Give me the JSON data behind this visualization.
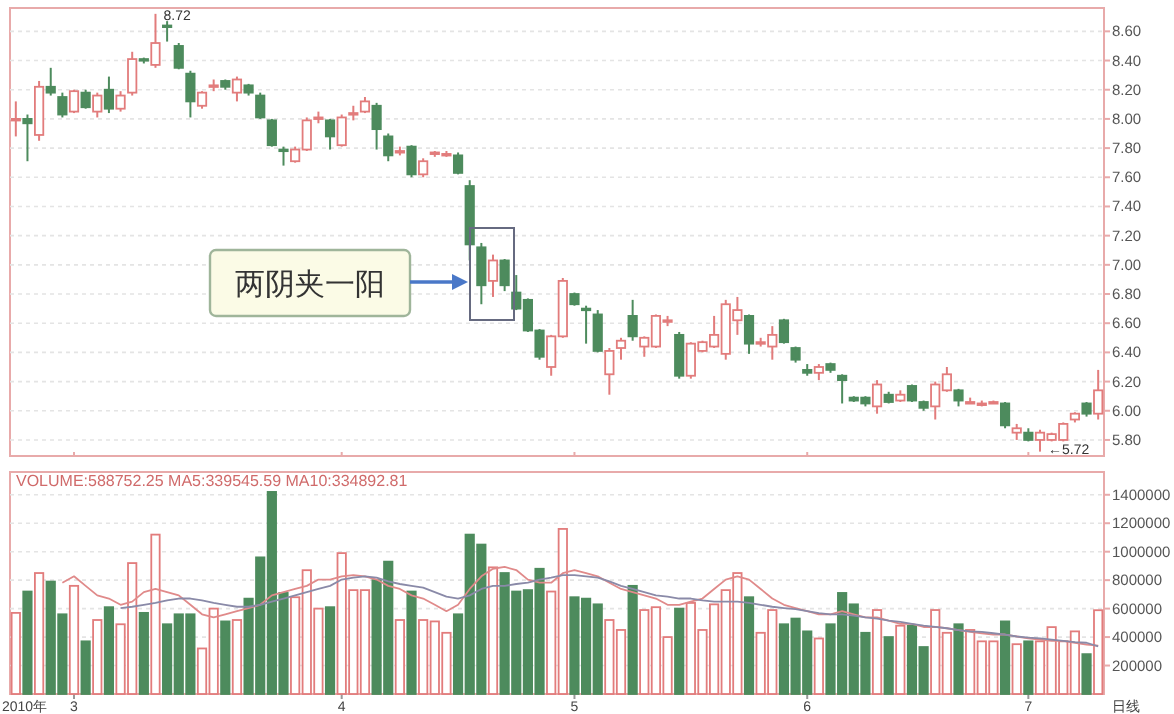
{
  "chart_data": [
    {
      "type": "candlestick",
      "tick_labels": "y",
      "grid": "y",
      "categories": [
        null,
        null,
        null,
        null,
        null,
        "3",
        null,
        null,
        null,
        null,
        null,
        null,
        null,
        null,
        null,
        null,
        null,
        null,
        null,
        null,
        null,
        null,
        null,
        null,
        null,
        null,
        null,
        null,
        "4",
        null,
        null,
        null,
        null,
        null,
        null,
        null,
        null,
        null,
        null,
        null,
        null,
        null,
        null,
        null,
        null,
        null,
        null,
        null,
        "5",
        null,
        null,
        null,
        null,
        null,
        null,
        null,
        null,
        null,
        null,
        null,
        null,
        null,
        null,
        null,
        null,
        null,
        null,
        null,
        "6",
        null,
        null,
        null,
        null,
        null,
        null,
        null,
        null,
        null,
        null,
        null,
        null,
        null,
        null,
        null,
        null,
        null,
        null,
        "7",
        null,
        null,
        null,
        null,
        null,
        null
      ],
      "ohlc": [
        [
          8.0,
          8.12,
          7.88,
          8.0
        ],
        [
          8.0,
          8.03,
          7.71,
          7.97
        ],
        [
          7.89,
          8.26,
          7.85,
          8.22
        ],
        [
          8.22,
          8.35,
          8.16,
          8.18
        ],
        [
          8.15,
          8.18,
          8.01,
          8.03
        ],
        [
          8.05,
          8.2,
          8.04,
          8.19
        ],
        [
          8.18,
          8.2,
          8.07,
          8.08
        ],
        [
          8.05,
          8.18,
          8.01,
          8.16
        ],
        [
          8.2,
          8.29,
          8.04,
          8.07
        ],
        [
          8.07,
          8.19,
          8.05,
          8.16
        ],
        [
          8.18,
          8.46,
          8.16,
          8.41
        ],
        [
          8.41,
          8.42,
          8.38,
          8.4
        ],
        [
          8.37,
          8.72,
          8.35,
          8.52
        ],
        [
          8.64,
          8.67,
          8.53,
          8.63
        ],
        [
          8.5,
          8.52,
          8.34,
          8.35
        ],
        [
          8.31,
          8.33,
          8.01,
          8.12
        ],
        [
          8.09,
          8.19,
          8.07,
          8.18
        ],
        [
          8.23,
          8.27,
          8.19,
          8.23
        ],
        [
          8.26,
          8.27,
          8.2,
          8.22
        ],
        [
          8.18,
          8.29,
          8.12,
          8.27
        ],
        [
          8.23,
          8.24,
          8.16,
          8.18
        ],
        [
          8.16,
          8.18,
          8.0,
          8.01
        ],
        [
          7.99,
          8.0,
          7.81,
          7.82
        ],
        [
          7.79,
          7.81,
          7.68,
          7.78
        ],
        [
          7.71,
          7.81,
          7.7,
          7.79
        ],
        [
          7.79,
          8.01,
          7.78,
          7.99
        ],
        [
          8.01,
          8.05,
          7.97,
          8.01
        ],
        [
          7.99,
          8.0,
          7.79,
          7.88
        ],
        [
          7.82,
          8.03,
          7.81,
          8.01
        ],
        [
          8.04,
          8.09,
          7.99,
          8.04
        ],
        [
          8.05,
          8.15,
          8.04,
          8.12
        ],
        [
          8.09,
          8.11,
          7.79,
          7.93
        ],
        [
          7.88,
          7.9,
          7.71,
          7.75
        ],
        [
          7.78,
          7.81,
          7.75,
          7.78
        ],
        [
          7.81,
          7.82,
          7.6,
          7.62
        ],
        [
          7.62,
          7.73,
          7.6,
          7.71
        ],
        [
          7.77,
          7.78,
          7.74,
          7.77
        ],
        [
          7.76,
          7.78,
          7.74,
          7.76
        ],
        [
          7.75,
          7.77,
          7.62,
          7.63
        ],
        [
          7.54,
          7.58,
          7.03,
          7.14
        ],
        [
          7.12,
          7.15,
          6.73,
          6.86
        ],
        [
          6.89,
          7.07,
          6.78,
          7.03
        ],
        [
          7.03,
          7.04,
          6.82,
          6.86
        ],
        [
          6.81,
          6.93,
          6.69,
          6.7
        ],
        [
          6.76,
          6.77,
          6.54,
          6.55
        ],
        [
          6.55,
          6.56,
          6.35,
          6.37
        ],
        [
          6.3,
          6.52,
          6.24,
          6.51
        ],
        [
          6.51,
          6.91,
          6.5,
          6.89
        ],
        [
          6.8,
          6.81,
          6.72,
          6.73
        ],
        [
          6.7,
          6.72,
          6.46,
          6.69
        ],
        [
          6.66,
          6.69,
          6.4,
          6.41
        ],
        [
          6.25,
          6.43,
          6.11,
          6.41
        ],
        [
          6.43,
          6.5,
          6.35,
          6.48
        ],
        [
          6.65,
          6.76,
          6.48,
          6.51
        ],
        [
          6.44,
          6.51,
          6.37,
          6.5
        ],
        [
          6.44,
          6.66,
          6.43,
          6.65
        ],
        [
          6.62,
          6.65,
          6.58,
          6.62
        ],
        [
          6.52,
          6.54,
          6.22,
          6.24
        ],
        [
          6.24,
          6.47,
          6.22,
          6.46
        ],
        [
          6.41,
          6.48,
          6.4,
          6.47
        ],
        [
          6.44,
          6.65,
          6.43,
          6.52
        ],
        [
          6.39,
          6.76,
          6.35,
          6.73
        ],
        [
          6.62,
          6.78,
          6.52,
          6.69
        ],
        [
          6.65,
          6.66,
          6.39,
          6.46
        ],
        [
          6.47,
          6.5,
          6.44,
          6.47
        ],
        [
          6.44,
          6.58,
          6.35,
          6.52
        ],
        [
          6.62,
          6.63,
          6.46,
          6.47
        ],
        [
          6.43,
          6.44,
          6.33,
          6.35
        ],
        [
          6.28,
          6.32,
          6.24,
          6.26
        ],
        [
          6.26,
          6.32,
          6.21,
          6.3
        ],
        [
          6.32,
          6.33,
          6.26,
          6.28
        ],
        [
          6.24,
          6.25,
          6.05,
          6.21
        ],
        [
          6.09,
          6.1,
          6.06,
          6.07
        ],
        [
          6.09,
          6.1,
          6.03,
          6.05
        ],
        [
          6.03,
          6.21,
          5.98,
          6.18
        ],
        [
          6.11,
          6.13,
          6.05,
          6.06
        ],
        [
          6.07,
          6.14,
          6.06,
          6.11
        ],
        [
          6.17,
          6.18,
          6.06,
          6.07
        ],
        [
          6.06,
          6.07,
          6.0,
          6.02
        ],
        [
          6.03,
          6.2,
          5.94,
          6.18
        ],
        [
          6.14,
          6.3,
          6.13,
          6.25
        ],
        [
          6.14,
          6.15,
          6.03,
          6.07
        ],
        [
          6.06,
          6.09,
          6.05,
          6.06
        ],
        [
          6.05,
          6.07,
          6.03,
          6.05
        ],
        [
          6.06,
          6.07,
          6.05,
          6.06
        ],
        [
          6.05,
          6.06,
          5.88,
          5.9
        ],
        [
          5.85,
          5.91,
          5.8,
          5.88
        ],
        [
          5.85,
          5.88,
          5.79,
          5.8
        ],
        [
          5.8,
          5.87,
          5.72,
          5.85
        ],
        [
          5.8,
          5.85,
          5.79,
          5.84
        ],
        [
          5.8,
          5.92,
          5.79,
          5.91
        ],
        [
          5.94,
          5.99,
          5.92,
          5.98
        ],
        [
          6.05,
          6.06,
          5.96,
          5.98
        ],
        [
          5.98,
          6.28,
          5.94,
          6.14
        ]
      ],
      "colors": [
        "#e27c7c",
        "#4d8b5d",
        "#e27c7c",
        "#4d8b5d",
        "#4d8b5d",
        "#e27c7c",
        "#4d8b5d",
        "#e27c7c",
        "#4d8b5d",
        "#e27c7c",
        "#e27c7c",
        "#4d8b5d",
        "#e27c7c",
        "#4d8b5d",
        "#4d8b5d",
        "#4d8b5d",
        "#e27c7c",
        "#e27c7c",
        "#4d8b5d",
        "#e27c7c",
        "#4d8b5d",
        "#4d8b5d",
        "#4d8b5d",
        "#4d8b5d",
        "#e27c7c",
        "#e27c7c",
        "#e27c7c",
        "#4d8b5d",
        "#e27c7c",
        "#e27c7c",
        "#e27c7c",
        "#4d8b5d",
        "#4d8b5d",
        "#e27c7c",
        "#4d8b5d",
        "#e27c7c",
        "#e27c7c",
        "#e27c7c",
        "#4d8b5d",
        "#4d8b5d",
        "#4d8b5d",
        "#e27c7c",
        "#4d8b5d",
        "#4d8b5d",
        "#4d8b5d",
        "#4d8b5d",
        "#e27c7c",
        "#e27c7c",
        "#4d8b5d",
        "#4d8b5d",
        "#4d8b5d",
        "#e27c7c",
        "#e27c7c",
        "#4d8b5d",
        "#e27c7c",
        "#e27c7c",
        "#e27c7c",
        "#4d8b5d",
        "#e27c7c",
        "#e27c7c",
        "#e27c7c",
        "#e27c7c",
        "#e27c7c",
        "#4d8b5d",
        "#e27c7c",
        "#e27c7c",
        "#4d8b5d",
        "#4d8b5d",
        "#4d8b5d",
        "#e27c7c",
        "#4d8b5d",
        "#4d8b5d",
        "#4d8b5d",
        "#4d8b5d",
        "#e27c7c",
        "#4d8b5d",
        "#e27c7c",
        "#4d8b5d",
        "#4d8b5d",
        "#e27c7c",
        "#e27c7c",
        "#4d8b5d",
        "#e27c7c",
        "#e27c7c",
        "#e27c7c",
        "#4d8b5d",
        "#e27c7c",
        "#4d8b5d",
        "#e27c7c",
        "#e27c7c",
        "#e27c7c",
        "#e27c7c",
        "#4d8b5d",
        "#e27c7c"
      ],
      "ylim": [
        5.69,
        8.76
      ],
      "yticks": [
        {
          "value": 5.8,
          "label": "5.80"
        },
        {
          "value": 6.0,
          "label": "6.00"
        },
        {
          "value": 6.2,
          "label": "6.20"
        },
        {
          "value": 6.4,
          "label": "6.40"
        },
        {
          "value": 6.6,
          "label": "6.60"
        },
        {
          "value": 6.8,
          "label": "6.80"
        },
        {
          "value": 7.0,
          "label": "7.00"
        },
        {
          "value": 7.2,
          "label": "7.20"
        },
        {
          "value": 7.4,
          "label": "7.40"
        },
        {
          "value": 7.6,
          "label": "7.60"
        },
        {
          "value": 7.8,
          "label": "7.80"
        },
        {
          "value": 8.0,
          "label": "8.00"
        },
        {
          "value": 8.2,
          "label": "8.20"
        },
        {
          "value": 8.4,
          "label": "8.40"
        },
        {
          "value": 8.6,
          "label": "8.60"
        }
      ],
      "annotations": [
        "8.72",
        "←5.72",
        "两阴夹一阳"
      ]
    },
    {
      "type": "bar",
      "grid": "y",
      "title": "VOLUME:588752.25  MA5:339545.59  MA10:334892.81",
      "categories": [
        null,
        null,
        null,
        null,
        null,
        "3",
        null,
        null,
        null,
        null,
        null,
        null,
        null,
        null,
        null,
        null,
        null,
        null,
        null,
        null,
        null,
        null,
        null,
        null,
        null,
        null,
        null,
        null,
        "4",
        null,
        null,
        null,
        null,
        null,
        null,
        null,
        null,
        null,
        null,
        null,
        null,
        null,
        null,
        null,
        null,
        null,
        null,
        null,
        "5",
        null,
        null,
        null,
        null,
        null,
        null,
        null,
        null,
        null,
        null,
        null,
        null,
        null,
        null,
        null,
        null,
        null,
        null,
        null,
        "6",
        null,
        null,
        null,
        null,
        null,
        null,
        null,
        null,
        null,
        null,
        null,
        null,
        null,
        null,
        null,
        null,
        null,
        null,
        "7",
        null,
        null,
        null,
        null,
        null,
        null
      ],
      "series": [
        {
          "type": "bar",
          "values": [
            570000,
            720000,
            850000,
            790000,
            560000,
            760000,
            370000,
            520000,
            610000,
            490000,
            920000,
            570000,
            1120000,
            490000,
            560000,
            560000,
            320000,
            600000,
            510000,
            520000,
            670000,
            960000,
            1420000,
            710000,
            680000,
            870000,
            600000,
            610000,
            990000,
            730000,
            730000,
            800000,
            930000,
            520000,
            720000,
            520000,
            510000,
            430000,
            560000,
            1120000,
            1050000,
            890000,
            850000,
            720000,
            730000,
            880000,
            720000,
            1160000,
            680000,
            670000,
            630000,
            520000,
            450000,
            760000,
            590000,
            610000,
            400000,
            600000,
            640000,
            450000,
            630000,
            730000,
            850000,
            680000,
            430000,
            590000,
            490000,
            530000,
            440000,
            390000,
            490000,
            710000,
            630000,
            430000,
            590000,
            400000,
            480000,
            480000,
            330000,
            590000,
            430000,
            490000,
            450000,
            370000,
            370000,
            510000,
            350000,
            370000,
            370000,
            470000,
            370000,
            440000,
            280000,
            588752.25
          ],
          "colors": [
            "#e27c7c",
            "#4d8b5d",
            "#e27c7c",
            "#4d8b5d",
            "#4d8b5d",
            "#e27c7c",
            "#4d8b5d",
            "#e27c7c",
            "#4d8b5d",
            "#e27c7c",
            "#e27c7c",
            "#4d8b5d",
            "#e27c7c",
            "#4d8b5d",
            "#4d8b5d",
            "#4d8b5d",
            "#e27c7c",
            "#e27c7c",
            "#4d8b5d",
            "#e27c7c",
            "#4d8b5d",
            "#4d8b5d",
            "#4d8b5d",
            "#4d8b5d",
            "#e27c7c",
            "#e27c7c",
            "#e27c7c",
            "#4d8b5d",
            "#e27c7c",
            "#e27c7c",
            "#e27c7c",
            "#4d8b5d",
            "#4d8b5d",
            "#e27c7c",
            "#4d8b5d",
            "#e27c7c",
            "#e27c7c",
            "#e27c7c",
            "#4d8b5d",
            "#4d8b5d",
            "#4d8b5d",
            "#e27c7c",
            "#4d8b5d",
            "#4d8b5d",
            "#4d8b5d",
            "#4d8b5d",
            "#e27c7c",
            "#e27c7c",
            "#4d8b5d",
            "#4d8b5d",
            "#4d8b5d",
            "#e27c7c",
            "#e27c7c",
            "#4d8b5d",
            "#e27c7c",
            "#e27c7c",
            "#e27c7c",
            "#4d8b5d",
            "#e27c7c",
            "#e27c7c",
            "#e27c7c",
            "#e27c7c",
            "#e27c7c",
            "#4d8b5d",
            "#e27c7c",
            "#e27c7c",
            "#4d8b5d",
            "#4d8b5d",
            "#4d8b5d",
            "#e27c7c",
            "#4d8b5d",
            "#4d8b5d",
            "#4d8b5d",
            "#4d8b5d",
            "#e27c7c",
            "#4d8b5d",
            "#e27c7c",
            "#4d8b5d",
            "#4d8b5d",
            "#e27c7c",
            "#e27c7c",
            "#4d8b5d",
            "#e27c7c",
            "#e27c7c",
            "#e27c7c",
            "#4d8b5d",
            "#e27c7c",
            "#4d8b5d",
            "#e27c7c",
            "#e27c7c",
            "#e27c7c",
            "#e27c7c",
            "#4d8b5d",
            "#e27c7c"
          ]
        },
        {
          "type": "line",
          "color": "#e08a8a",
          "values": [
            null,
            null,
            null,
            null,
            782000,
            827000,
            760000,
            693000,
            671000,
            627000,
            649000,
            716000,
            738000,
            716000,
            693000,
            627000,
            560000,
            538000,
            560000,
            582000,
            604000,
            627000,
            693000,
            716000,
            738000,
            760000,
            804000,
            804000,
            827000,
            836000,
            827000,
            804000,
            760000,
            738000,
            693000,
            671000,
            627000,
            582000,
            627000,
            738000,
            827000,
            880000,
            893000,
            871000,
            804000,
            782000,
            782000,
            849000,
            871000,
            849000,
            827000,
            782000,
            738000,
            716000,
            693000,
            671000,
            627000,
            627000,
            649000,
            671000,
            738000,
            804000,
            827000,
            804000,
            738000,
            671000,
            627000,
            604000,
            582000,
            560000,
            560000,
            582000,
            560000,
            538000,
            538000,
            516000,
            493000,
            493000,
            471000,
            471000,
            462000,
            449000,
            436000,
            427000,
            418000,
            418000,
            404000,
            391000,
            382000,
            373000,
            373000,
            360000,
            347000,
            339545.59
          ]
        },
        {
          "type": "line",
          "color": "#8a8aa8",
          "values": [
            null,
            null,
            null,
            null,
            null,
            null,
            null,
            null,
            null,
            604000,
            613000,
            627000,
            640000,
            658000,
            671000,
            671000,
            658000,
            640000,
            627000,
            613000,
            613000,
            627000,
            649000,
            671000,
            693000,
            716000,
            738000,
            760000,
            804000,
            818000,
            827000,
            818000,
            791000,
            773000,
            760000,
            747000,
            716000,
            684000,
            671000,
            693000,
            738000,
            760000,
            760000,
            773000,
            782000,
            804000,
            818000,
            836000,
            836000,
            827000,
            818000,
            791000,
            760000,
            738000,
            716000,
            693000,
            684000,
            671000,
            671000,
            658000,
            649000,
            649000,
            649000,
            640000,
            627000,
            613000,
            604000,
            596000,
            582000,
            569000,
            560000,
            560000,
            551000,
            538000,
            529000,
            516000,
            507000,
            493000,
            480000,
            471000,
            462000,
            449000,
            440000,
            436000,
            427000,
            418000,
            404000,
            396000,
            391000,
            382000,
            373000,
            364000,
            360000,
            334892.81
          ]
        }
      ],
      "ylim": [
        0,
        1560000
      ],
      "yticks": [
        200000,
        400000,
        600000,
        800000,
        1000000,
        1200000,
        1400000
      ],
      "annotations": [
        "日线",
        "2010年"
      ]
    }
  ]
}
